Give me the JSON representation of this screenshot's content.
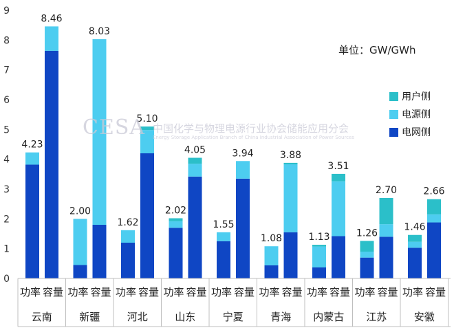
{
  "unit_label": "单位：GW/GWh",
  "watermark": {
    "logo": "CESA",
    "name_cn": "中国化学与物理电源行业协会储能应用分会",
    "name_en": "Energy Storage Application Branch of China Industrial Association of Power Sources"
  },
  "colors": {
    "user": "#2bbfc9",
    "source": "#4dcdf0",
    "grid": "#0f46c4"
  },
  "chart_data": {
    "type": "bar",
    "stacked": true,
    "ylim": [
      0,
      9
    ],
    "yticks": [
      0,
      1,
      2,
      3,
      4,
      5,
      6,
      7,
      8,
      9
    ],
    "gridlines": false,
    "legend_position": "right",
    "legend": [
      "用户侧",
      "电源侧",
      "电网侧"
    ],
    "provinces": [
      "云南",
      "新疆",
      "河北",
      "山东",
      "宁夏",
      "青海",
      "内蒙古",
      "江苏",
      "安徽"
    ],
    "sub_categories": [
      "功率",
      "容量"
    ],
    "bars": [
      {
        "province": "云南",
        "metric": "功率",
        "total_label": "4.23",
        "grid": 3.82,
        "source": 0.41,
        "user": 0.0
      },
      {
        "province": "云南",
        "metric": "容量",
        "total_label": "8.46",
        "grid": 7.64,
        "source": 0.82,
        "user": 0.0
      },
      {
        "province": "新疆",
        "metric": "功率",
        "total_label": "2.00",
        "grid": 0.45,
        "source": 1.55,
        "user": 0.0
      },
      {
        "province": "新疆",
        "metric": "容量",
        "total_label": "8.03",
        "grid": 1.8,
        "source": 6.23,
        "user": 0.0
      },
      {
        "province": "河北",
        "metric": "功率",
        "total_label": "1.62",
        "grid": 1.2,
        "source": 0.42,
        "user": 0.0
      },
      {
        "province": "河北",
        "metric": "容量",
        "total_label": "5.10",
        "grid": 4.2,
        "source": 0.78,
        "user": 0.12
      },
      {
        "province": "山东",
        "metric": "功率",
        "total_label": "2.02",
        "grid": 1.7,
        "source": 0.22,
        "user": 0.1
      },
      {
        "province": "山东",
        "metric": "容量",
        "total_label": "4.05",
        "grid": 3.42,
        "source": 0.43,
        "user": 0.2
      },
      {
        "province": "宁夏",
        "metric": "功率",
        "total_label": "1.55",
        "grid": 1.25,
        "source": 0.3,
        "user": 0.0
      },
      {
        "province": "宁夏",
        "metric": "容量",
        "total_label": "3.94",
        "grid": 3.35,
        "source": 0.59,
        "user": 0.0
      },
      {
        "province": "青海",
        "metric": "功率",
        "total_label": "1.08",
        "grid": 0.44,
        "source": 0.64,
        "user": 0.0
      },
      {
        "province": "青海",
        "metric": "容量",
        "total_label": "3.88",
        "grid": 1.55,
        "source": 2.28,
        "user": 0.05
      },
      {
        "province": "内蒙古",
        "metric": "功率",
        "total_label": "1.13",
        "grid": 0.37,
        "source": 0.7,
        "user": 0.06
      },
      {
        "province": "内蒙古",
        "metric": "容量",
        "total_label": "3.51",
        "grid": 1.42,
        "source": 1.84,
        "user": 0.25
      },
      {
        "province": "江苏",
        "metric": "功率",
        "total_label": "1.26",
        "grid": 0.7,
        "source": 0.2,
        "user": 0.36
      },
      {
        "province": "江苏",
        "metric": "容量",
        "total_label": "2.70",
        "grid": 1.4,
        "source": 0.42,
        "user": 0.88
      },
      {
        "province": "安徽",
        "metric": "功率",
        "total_label": "1.46",
        "grid": 1.03,
        "source": 0.2,
        "user": 0.23
      },
      {
        "province": "安徽",
        "metric": "容量",
        "total_label": "2.66",
        "grid": 1.88,
        "source": 0.27,
        "user": 0.51
      }
    ]
  }
}
